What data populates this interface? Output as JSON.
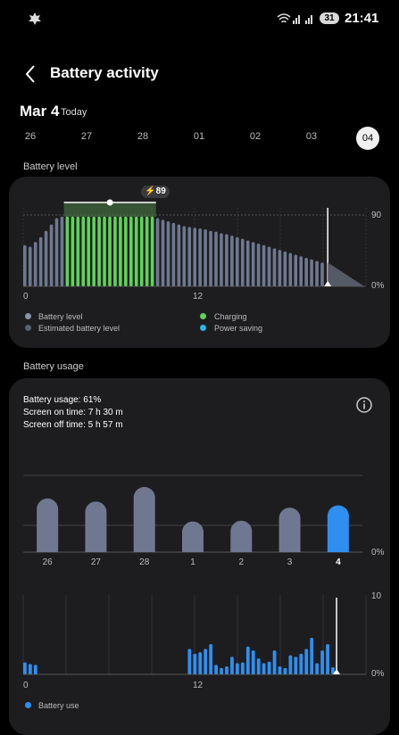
{
  "status": {
    "time": "21:41",
    "battery": "31"
  },
  "header": {
    "title": "Battery activity"
  },
  "date": {
    "main": "Mar 4",
    "sub": "Today"
  },
  "days": [
    "26",
    "27",
    "28",
    "01",
    "02",
    "03",
    "04"
  ],
  "battery_level": {
    "section_label": "Battery level",
    "badge": "89",
    "y_top_label": "90",
    "y_bottom_label": "0%",
    "x_labels": [
      "0",
      "12"
    ],
    "legend": {
      "battery_level": "Battery level",
      "estimated": "Estimated battery level",
      "charging": "Charging",
      "power_saving": "Power saving"
    },
    "colors": {
      "normal": "#6f7890",
      "charging": "#5ed457",
      "estimated": "#555a66",
      "power_saving": "#2ab8e3"
    }
  },
  "battery_usage": {
    "section_label": "Battery usage",
    "usage": "Battery usage: 61%",
    "screen_on": "Screen on time: 7 h 30 m",
    "screen_off": "Screen off time: 5 h 57 m",
    "bottom_label": "0%",
    "hourly_top_label": "10",
    "hourly_bottom_label": "0%",
    "hourly_x_labels": [
      "0",
      "12"
    ],
    "legend_use": "Battery use",
    "colors": {
      "daily": "#6f7890",
      "selected": "#2f8ff0"
    }
  },
  "chart_data": [
    {
      "type": "bar",
      "title": "Battery level",
      "x_range": [
        0,
        24
      ],
      "ylim": [
        0,
        100
      ],
      "y_tick_labels": [
        "0%",
        "90"
      ],
      "x_tick_labels": [
        "0",
        "12"
      ],
      "charging_values": [
        88,
        88,
        88,
        88,
        88,
        88,
        88,
        88,
        88,
        88,
        88,
        88,
        88,
        88,
        88,
        88,
        88
      ],
      "measured_values": [
        52,
        50,
        56,
        62,
        70,
        78,
        86,
        88,
        88,
        88,
        88,
        88,
        88,
        88,
        88,
        88,
        88,
        88,
        88,
        88,
        88,
        88,
        88,
        88,
        88,
        86,
        84,
        82,
        80,
        78,
        76,
        75,
        74,
        73,
        72,
        70,
        69,
        67,
        66,
        64,
        62,
        60,
        58,
        56,
        54,
        52,
        50,
        48,
        46,
        44,
        42,
        40,
        38,
        36,
        34,
        32,
        30
      ],
      "charging_start_index": 8,
      "estimated_until_percent": 0
    },
    {
      "type": "bar",
      "title": "Battery usage",
      "categories": [
        "26",
        "27",
        "28",
        "1",
        "2",
        "3",
        "4"
      ],
      "values": [
        70,
        66,
        85,
        40,
        41,
        58,
        61
      ],
      "ylim": [
        0,
        100
      ],
      "selected": "4"
    },
    {
      "type": "bar",
      "title": "Battery use",
      "x_range": [
        0,
        24
      ],
      "ylim": [
        0,
        10
      ],
      "y_tick_labels": [
        "0%",
        "10"
      ],
      "x_tick_labels": [
        "0",
        "12"
      ],
      "values": [
        1.5,
        1.3,
        1.2,
        0,
        0,
        0,
        0,
        0,
        0,
        0,
        0,
        0,
        0,
        0,
        0,
        0,
        0,
        0,
        0,
        0,
        0,
        0,
        0,
        0,
        0,
        0,
        0,
        0,
        0,
        0,
        0,
        3.2,
        2.6,
        2.8,
        3.2,
        3.8,
        1.2,
        0.8,
        1.0,
        2.2,
        1.4,
        1.5,
        3.5,
        3.0,
        2.0,
        1.4,
        1.6,
        3.0,
        1.0,
        0.8,
        2.4,
        2.2,
        2.6,
        3.2,
        4.6,
        1.4,
        3.0,
        3.8,
        0.9,
        0
      ]
    }
  ]
}
